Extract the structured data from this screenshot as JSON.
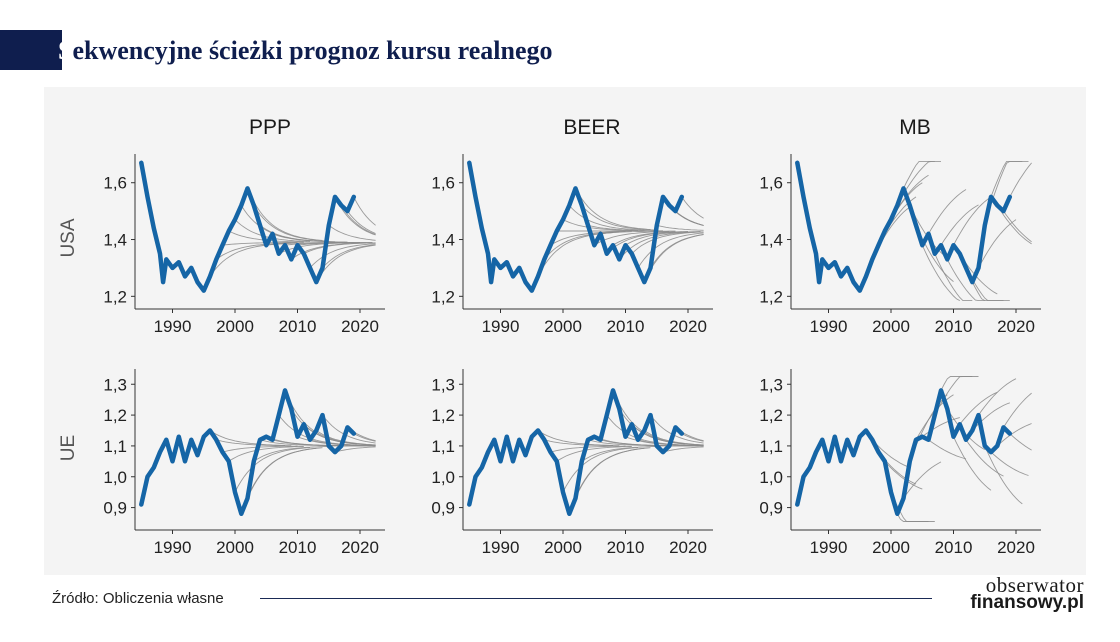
{
  "title": {
    "first_letter": "S",
    "rest": "ekwencyjne ścieżki prognoz kursu realnego"
  },
  "source": "Źródło: Obliczenia własne",
  "logo": {
    "line1": "obserwator",
    "line2": "finansowy.pl"
  },
  "colors": {
    "main_series": "#1565a6",
    "forecast_paths": "#8a8a8a",
    "title": "#0f1e4e"
  },
  "chart_data": [
    {
      "type": "line",
      "column": "PPP",
      "row": "USA",
      "xlim": [
        1984,
        2024
      ],
      "ylim": [
        1.18,
        1.68
      ],
      "x_ticks": [
        "1990",
        "2000",
        "2010",
        "2020"
      ],
      "y_ticks": [
        "1,2",
        "1,4",
        "1,6"
      ],
      "y_tick_values": [
        1.2,
        1.4,
        1.6
      ],
      "grid": false,
      "series": [
        {
          "values": [
            [
              1985,
              1.67
            ],
            [
              1986,
              1.55
            ],
            [
              1987,
              1.44
            ],
            [
              1988,
              1.35
            ],
            [
              1988.5,
              1.25
            ],
            [
              1989,
              1.33
            ],
            [
              1990,
              1.3
            ],
            [
              1991,
              1.32
            ],
            [
              1992,
              1.27
            ],
            [
              1993,
              1.3
            ],
            [
              1994,
              1.25
            ],
            [
              1995,
              1.22
            ],
            [
              1996,
              1.27
            ],
            [
              1997,
              1.33
            ],
            [
              1998,
              1.38
            ],
            [
              1999,
              1.43
            ],
            [
              2000,
              1.47
            ],
            [
              2001,
              1.52
            ],
            [
              2002,
              1.58
            ],
            [
              2003,
              1.52
            ],
            [
              2004,
              1.45
            ],
            [
              2005,
              1.38
            ],
            [
              2006,
              1.42
            ],
            [
              2007,
              1.35
            ],
            [
              2008,
              1.38
            ],
            [
              2009,
              1.33
            ],
            [
              2010,
              1.38
            ],
            [
              2011,
              1.35
            ],
            [
              2012,
              1.3
            ],
            [
              2013,
              1.25
            ],
            [
              2014,
              1.3
            ],
            [
              2015,
              1.45
            ],
            [
              2016,
              1.55
            ],
            [
              2017,
              1.52
            ],
            [
              2018,
              1.5
            ],
            [
              2019,
              1.55
            ]
          ]
        }
      ],
      "forecast_paths": {
        "start_year": 1996,
        "end_year": 2019,
        "step_years": 1,
        "horizon_years": 12,
        "convergence_value": 1.39,
        "pull": 0.28
      }
    },
    {
      "type": "line",
      "column": "BEER",
      "row": "USA",
      "xlim": [
        1984,
        2024
      ],
      "ylim": [
        1.18,
        1.68
      ],
      "x_ticks": [
        "1990",
        "2000",
        "2010",
        "2020"
      ],
      "y_ticks": [
        "1,2",
        "1,4",
        "1,6"
      ],
      "y_tick_values": [
        1.2,
        1.4,
        1.6
      ],
      "grid": false,
      "series": [
        {
          "values": [
            [
              1985,
              1.67
            ],
            [
              1986,
              1.55
            ],
            [
              1987,
              1.44
            ],
            [
              1988,
              1.35
            ],
            [
              1988.5,
              1.25
            ],
            [
              1989,
              1.33
            ],
            [
              1990,
              1.3
            ],
            [
              1991,
              1.32
            ],
            [
              1992,
              1.27
            ],
            [
              1993,
              1.3
            ],
            [
              1994,
              1.25
            ],
            [
              1995,
              1.22
            ],
            [
              1996,
              1.27
            ],
            [
              1997,
              1.33
            ],
            [
              1998,
              1.38
            ],
            [
              1999,
              1.43
            ],
            [
              2000,
              1.47
            ],
            [
              2001,
              1.52
            ],
            [
              2002,
              1.58
            ],
            [
              2003,
              1.52
            ],
            [
              2004,
              1.45
            ],
            [
              2005,
              1.38
            ],
            [
              2006,
              1.42
            ],
            [
              2007,
              1.35
            ],
            [
              2008,
              1.38
            ],
            [
              2009,
              1.33
            ],
            [
              2010,
              1.38
            ],
            [
              2011,
              1.35
            ],
            [
              2012,
              1.3
            ],
            [
              2013,
              1.25
            ],
            [
              2014,
              1.3
            ],
            [
              2015,
              1.45
            ],
            [
              2016,
              1.55
            ],
            [
              2017,
              1.52
            ],
            [
              2018,
              1.5
            ],
            [
              2019,
              1.55
            ]
          ]
        }
      ],
      "forecast_paths": {
        "start_year": 1996,
        "end_year": 2019,
        "step_years": 1,
        "horizon_years": 12,
        "convergence_value": 1.43,
        "pull": 0.28
      }
    },
    {
      "type": "line",
      "column": "MB",
      "row": "USA",
      "xlim": [
        1984,
        2024
      ],
      "ylim": [
        1.18,
        1.68
      ],
      "x_ticks": [
        "1990",
        "2000",
        "2010",
        "2020"
      ],
      "y_ticks": [
        "1,2",
        "1,4",
        "1,6"
      ],
      "y_tick_values": [
        1.2,
        1.4,
        1.6
      ],
      "grid": false,
      "series": [
        {
          "values": [
            [
              1985,
              1.67
            ],
            [
              1986,
              1.55
            ],
            [
              1987,
              1.44
            ],
            [
              1988,
              1.35
            ],
            [
              1988.5,
              1.25
            ],
            [
              1989,
              1.33
            ],
            [
              1990,
              1.3
            ],
            [
              1991,
              1.32
            ],
            [
              1992,
              1.27
            ],
            [
              1993,
              1.3
            ],
            [
              1994,
              1.25
            ],
            [
              1995,
              1.22
            ],
            [
              1996,
              1.27
            ],
            [
              1997,
              1.33
            ],
            [
              1998,
              1.38
            ],
            [
              1999,
              1.43
            ],
            [
              2000,
              1.47
            ],
            [
              2001,
              1.52
            ],
            [
              2002,
              1.58
            ],
            [
              2003,
              1.52
            ],
            [
              2004,
              1.45
            ],
            [
              2005,
              1.38
            ],
            [
              2006,
              1.42
            ],
            [
              2007,
              1.35
            ],
            [
              2008,
              1.38
            ],
            [
              2009,
              1.33
            ],
            [
              2010,
              1.38
            ],
            [
              2011,
              1.35
            ],
            [
              2012,
              1.3
            ],
            [
              2013,
              1.25
            ],
            [
              2014,
              1.3
            ],
            [
              2015,
              1.45
            ],
            [
              2016,
              1.55
            ],
            [
              2017,
              1.52
            ],
            [
              2018,
              1.5
            ],
            [
              2019,
              1.55
            ]
          ]
        }
      ],
      "forecast_paths": {
        "start_year": 1997,
        "end_year": 2019,
        "step_years": 1,
        "horizon_years": 6,
        "drift_per_year": 0.025
      }
    },
    {
      "type": "line",
      "column": "PPP",
      "row": "UE",
      "xlim": [
        1984,
        2024
      ],
      "ylim": [
        0.85,
        1.33
      ],
      "x_ticks": [
        "1990",
        "2000",
        "2010",
        "2020"
      ],
      "y_ticks": [
        "0,9",
        "1,0",
        "1,1",
        "1,2",
        "1,3"
      ],
      "y_tick_values": [
        0.9,
        1.0,
        1.1,
        1.2,
        1.3
      ],
      "grid": false,
      "series": [
        {
          "values": [
            [
              1985,
              0.91
            ],
            [
              1986,
              1.0
            ],
            [
              1987,
              1.03
            ],
            [
              1988,
              1.08
            ],
            [
              1989,
              1.12
            ],
            [
              1990,
              1.05
            ],
            [
              1991,
              1.13
            ],
            [
              1992,
              1.05
            ],
            [
              1993,
              1.12
            ],
            [
              1994,
              1.07
            ],
            [
              1995,
              1.13
            ],
            [
              1996,
              1.15
            ],
            [
              1997,
              1.12
            ],
            [
              1998,
              1.08
            ],
            [
              1999,
              1.05
            ],
            [
              2000,
              0.95
            ],
            [
              2001,
              0.88
            ],
            [
              2002,
              0.93
            ],
            [
              2003,
              1.05
            ],
            [
              2004,
              1.12
            ],
            [
              2005,
              1.13
            ],
            [
              2006,
              1.12
            ],
            [
              2007,
              1.2
            ],
            [
              2008,
              1.28
            ],
            [
              2009,
              1.22
            ],
            [
              2010,
              1.13
            ],
            [
              2011,
              1.17
            ],
            [
              2012,
              1.12
            ],
            [
              2013,
              1.15
            ],
            [
              2014,
              1.2
            ],
            [
              2015,
              1.1
            ],
            [
              2016,
              1.08
            ],
            [
              2017,
              1.1
            ],
            [
              2018,
              1.16
            ],
            [
              2019,
              1.14
            ]
          ]
        }
      ],
      "forecast_paths": {
        "start_year": 1996,
        "end_year": 2019,
        "step_years": 1,
        "horizon_years": 12,
        "convergence_value": 1.1,
        "pull": 0.28
      }
    },
    {
      "type": "line",
      "column": "BEER",
      "row": "UE",
      "xlim": [
        1984,
        2024
      ],
      "ylim": [
        0.85,
        1.33
      ],
      "x_ticks": [
        "1990",
        "2000",
        "2010",
        "2020"
      ],
      "y_ticks": [
        "0,9",
        "1,0",
        "1,1",
        "1,2",
        "1,3"
      ],
      "y_tick_values": [
        0.9,
        1.0,
        1.1,
        1.2,
        1.3
      ],
      "grid": false,
      "series": [
        {
          "values": [
            [
              1985,
              0.91
            ],
            [
              1986,
              1.0
            ],
            [
              1987,
              1.03
            ],
            [
              1988,
              1.08
            ],
            [
              1989,
              1.12
            ],
            [
              1990,
              1.05
            ],
            [
              1991,
              1.13
            ],
            [
              1992,
              1.05
            ],
            [
              1993,
              1.12
            ],
            [
              1994,
              1.07
            ],
            [
              1995,
              1.13
            ],
            [
              1996,
              1.15
            ],
            [
              1997,
              1.12
            ],
            [
              1998,
              1.08
            ],
            [
              1999,
              1.05
            ],
            [
              2000,
              0.95
            ],
            [
              2001,
              0.88
            ],
            [
              2002,
              0.93
            ],
            [
              2003,
              1.05
            ],
            [
              2004,
              1.12
            ],
            [
              2005,
              1.13
            ],
            [
              2006,
              1.12
            ],
            [
              2007,
              1.2
            ],
            [
              2008,
              1.28
            ],
            [
              2009,
              1.22
            ],
            [
              2010,
              1.13
            ],
            [
              2011,
              1.17
            ],
            [
              2012,
              1.12
            ],
            [
              2013,
              1.15
            ],
            [
              2014,
              1.2
            ],
            [
              2015,
              1.1
            ],
            [
              2016,
              1.08
            ],
            [
              2017,
              1.1
            ],
            [
              2018,
              1.16
            ],
            [
              2019,
              1.14
            ]
          ]
        }
      ],
      "forecast_paths": {
        "start_year": 1996,
        "end_year": 2019,
        "step_years": 1,
        "horizon_years": 12,
        "convergence_value": 1.1,
        "pull": 0.28
      }
    },
    {
      "type": "line",
      "column": "MB",
      "row": "UE",
      "xlim": [
        1984,
        2024
      ],
      "ylim": [
        0.85,
        1.33
      ],
      "x_ticks": [
        "1990",
        "2000",
        "2010",
        "2020"
      ],
      "y_ticks": [
        "0,9",
        "1,0",
        "1,1",
        "1,2",
        "1,3"
      ],
      "y_tick_values": [
        0.9,
        1.0,
        1.1,
        1.2,
        1.3
      ],
      "grid": false,
      "series": [
        {
          "values": [
            [
              1985,
              0.91
            ],
            [
              1986,
              1.0
            ],
            [
              1987,
              1.03
            ],
            [
              1988,
              1.08
            ],
            [
              1989,
              1.12
            ],
            [
              1990,
              1.05
            ],
            [
              1991,
              1.13
            ],
            [
              1992,
              1.05
            ],
            [
              1993,
              1.12
            ],
            [
              1994,
              1.07
            ],
            [
              1995,
              1.13
            ],
            [
              1996,
              1.15
            ],
            [
              1997,
              1.12
            ],
            [
              1998,
              1.08
            ],
            [
              1999,
              1.05
            ],
            [
              2000,
              0.95
            ],
            [
              2001,
              0.88
            ],
            [
              2002,
              0.93
            ],
            [
              2003,
              1.05
            ],
            [
              2004,
              1.12
            ],
            [
              2005,
              1.13
            ],
            [
              2006,
              1.12
            ],
            [
              2007,
              1.2
            ],
            [
              2008,
              1.28
            ],
            [
              2009,
              1.22
            ],
            [
              2010,
              1.13
            ],
            [
              2011,
              1.17
            ],
            [
              2012,
              1.12
            ],
            [
              2013,
              1.15
            ],
            [
              2014,
              1.2
            ],
            [
              2015,
              1.1
            ],
            [
              2016,
              1.08
            ],
            [
              2017,
              1.1
            ],
            [
              2018,
              1.16
            ],
            [
              2019,
              1.14
            ]
          ]
        }
      ],
      "forecast_paths": {
        "start_year": 1997,
        "end_year": 2019,
        "step_years": 1,
        "horizon_years": 6,
        "drift_per_year": 0.012
      }
    }
  ]
}
